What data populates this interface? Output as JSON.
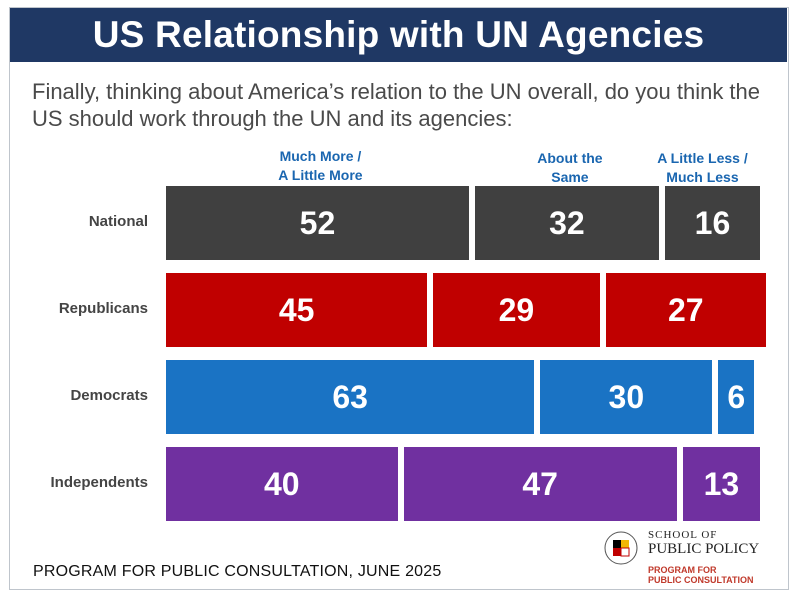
{
  "title": "US Relationship with UN Agencies",
  "question": "Finally, thinking about America’s relation to the UN overall, do you think the US should work through the UN and its agencies:",
  "footer": "PROGRAM FOR PUBLIC CONSULTATION, JUNE 2025",
  "logo": {
    "school_line1": "SCHOOL OF",
    "school_line2": "PUBLIC POLICY",
    "program_line1": "PROGRAM FOR",
    "program_line2": "PUBLIC CONSULTATION"
  },
  "colors": {
    "title_bg": "#1f3864",
    "National": "#404040",
    "Republicans": "#c00000",
    "Democrats": "#1a73c4",
    "Independents": "#7030a0",
    "header_text": "#1a66b0"
  },
  "chart_data": {
    "type": "bar",
    "orientation": "horizontal",
    "stacked": true,
    "categories": [
      "National",
      "Republicans",
      "Democrats",
      "Independents"
    ],
    "series": [
      {
        "name": "Much More / A Little More",
        "values": [
          52,
          45,
          63,
          40
        ]
      },
      {
        "name": "About the Same",
        "values": [
          32,
          29,
          30,
          47
        ]
      },
      {
        "name": "A Little Less / Much Less",
        "values": [
          16,
          27,
          6,
          13
        ]
      }
    ],
    "column_headers": [
      [
        "Much More /",
        "A Little More"
      ],
      [
        "About the",
        "Same"
      ],
      [
        "A Little Less /",
        "Much Less"
      ]
    ],
    "data_labels": true,
    "xlim": [
      0,
      100
    ],
    "grid": false
  }
}
